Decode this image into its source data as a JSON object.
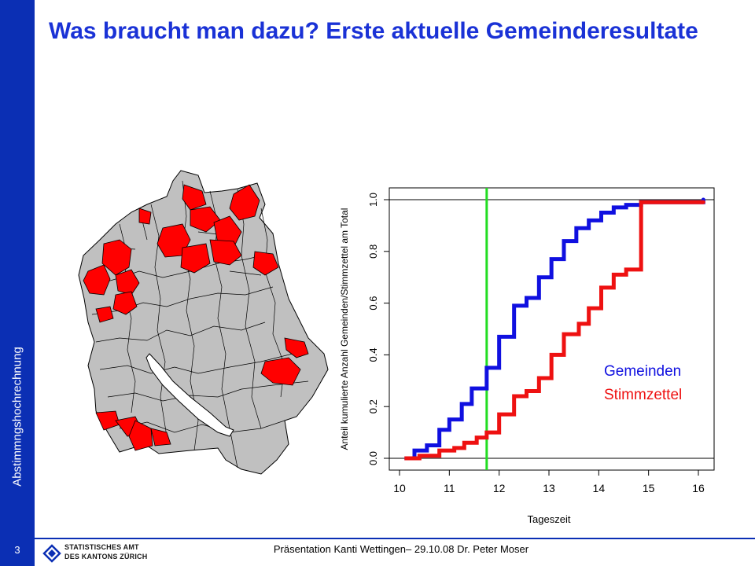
{
  "slide": {
    "title": "Was braucht man dazu? Erste aktuelle Gemeinderesultate",
    "sidebar_label": "Abstimmngshochrechnung",
    "page_number": "3",
    "footer": "Präsentation Kanti Wettingen– 29.10.08  Dr. Peter Moser",
    "logo": {
      "line1": "STATISTISCHES AMT",
      "line2": "DES KANTONS ZÜRICH"
    },
    "colors": {
      "brand": "#0b2fb4",
      "title": "#1a32d6",
      "map_fill": "#c0c0c0",
      "map_highlight": "#ff0000"
    }
  },
  "map": {
    "icon": "canton-zurich-map",
    "highlighted_regions": "red"
  },
  "chart_data": {
    "type": "line",
    "xlabel": "Tageszeit",
    "ylabel": "Anteil kumulierte Anzahl Gemeinden/Stimmzettel am Total",
    "xlim": [
      10,
      16
    ],
    "ylim": [
      0,
      1
    ],
    "xticks": [
      "10",
      "11",
      "12",
      "13",
      "14",
      "15",
      "16"
    ],
    "yticks": [
      "0.0",
      "0.2",
      "0.4",
      "0.6",
      "0.8",
      "1.0"
    ],
    "hlines": [
      0,
      1
    ],
    "vline": {
      "x": 11.75,
      "color": "#22dd22"
    },
    "series": [
      {
        "name": "Gemeinden",
        "color": "#1010e0",
        "x": [
          10.1,
          10.3,
          10.55,
          10.8,
          11.0,
          11.25,
          11.45,
          11.75,
          12.0,
          12.3,
          12.55,
          12.8,
          13.05,
          13.3,
          13.55,
          13.8,
          14.05,
          14.3,
          14.55,
          14.85,
          16.1
        ],
        "y": [
          0.0,
          0.03,
          0.05,
          0.11,
          0.15,
          0.21,
          0.27,
          0.35,
          0.47,
          0.59,
          0.62,
          0.7,
          0.77,
          0.84,
          0.89,
          0.92,
          0.95,
          0.97,
          0.98,
          0.99,
          1.0
        ]
      },
      {
        "name": "Stimmzettel",
        "color": "#ee1111",
        "x": [
          10.1,
          10.4,
          10.8,
          11.1,
          11.3,
          11.55,
          11.75,
          12.0,
          12.3,
          12.55,
          12.8,
          13.05,
          13.3,
          13.6,
          13.8,
          14.05,
          14.3,
          14.55,
          14.85,
          16.1
        ],
        "y": [
          0.0,
          0.01,
          0.03,
          0.04,
          0.06,
          0.08,
          0.1,
          0.17,
          0.24,
          0.26,
          0.31,
          0.4,
          0.48,
          0.52,
          0.58,
          0.66,
          0.71,
          0.73,
          0.99,
          0.99
        ]
      }
    ],
    "legend": "right"
  }
}
